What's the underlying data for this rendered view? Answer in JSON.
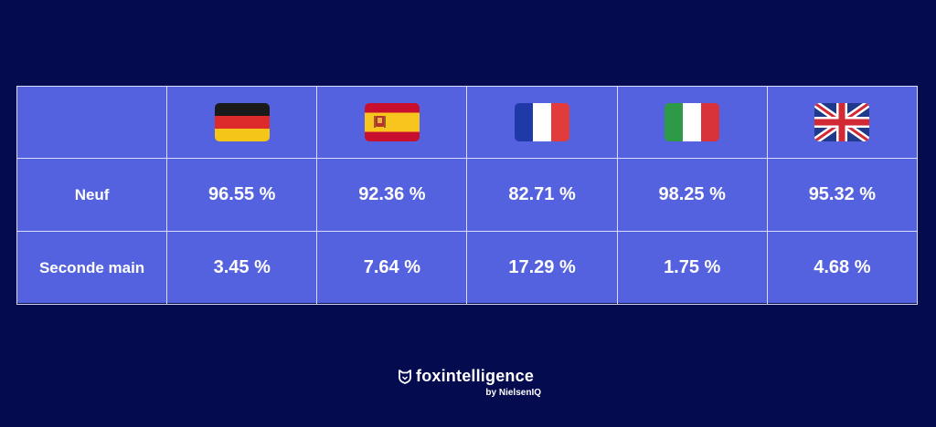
{
  "chart_data": {
    "type": "table",
    "columns": [
      {
        "country": "Germany",
        "flag_icon": "germany-flag-icon"
      },
      {
        "country": "Spain",
        "flag_icon": "spain-flag-icon"
      },
      {
        "country": "France",
        "flag_icon": "france-flag-icon"
      },
      {
        "country": "Italy",
        "flag_icon": "italy-flag-icon"
      },
      {
        "country": "United Kingdom",
        "flag_icon": "uk-flag-icon"
      }
    ],
    "rows": [
      {
        "label": "Neuf",
        "values": [
          "96.55 %",
          "92.36 %",
          "82.71 %",
          "98.25 %",
          "95.32 %"
        ]
      },
      {
        "label": "Seconde main",
        "values": [
          "3.45 %",
          "7.64 %",
          "17.29 %",
          "1.75 %",
          "4.68 %"
        ]
      }
    ]
  },
  "brand": {
    "name": "foxintelligence",
    "sub": "by NielsenIQ",
    "icon": "fox-logo-icon"
  },
  "colors": {
    "background": "#040b4f",
    "table": "#5562e0",
    "border": "#d8dcf8",
    "text": "#ffffff"
  }
}
